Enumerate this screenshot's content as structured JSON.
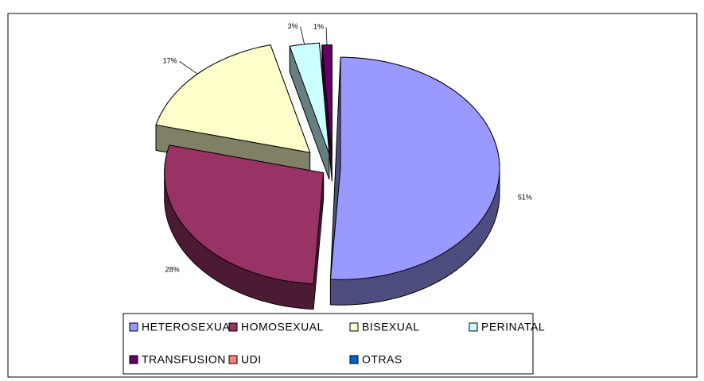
{
  "chart_data": {
    "type": "pie3d",
    "categories": [
      "HETEROSEXUAL",
      "HOMOSEXUAL",
      "BISEXUAL",
      "PERINATAL",
      "TRANSFUSION",
      "UDI",
      "OTRAS"
    ],
    "values": [
      51,
      28,
      17,
      3,
      1,
      0,
      0
    ],
    "value_labels": [
      "51%",
      "28%",
      "17%",
      "3%",
      "1%",
      null,
      null
    ],
    "colors": [
      "#9999ff",
      "#993366",
      "#ffffcc",
      "#ccffff",
      "#660066",
      "#ff8080",
      "#0066cc"
    ],
    "legend": "bottom"
  }
}
